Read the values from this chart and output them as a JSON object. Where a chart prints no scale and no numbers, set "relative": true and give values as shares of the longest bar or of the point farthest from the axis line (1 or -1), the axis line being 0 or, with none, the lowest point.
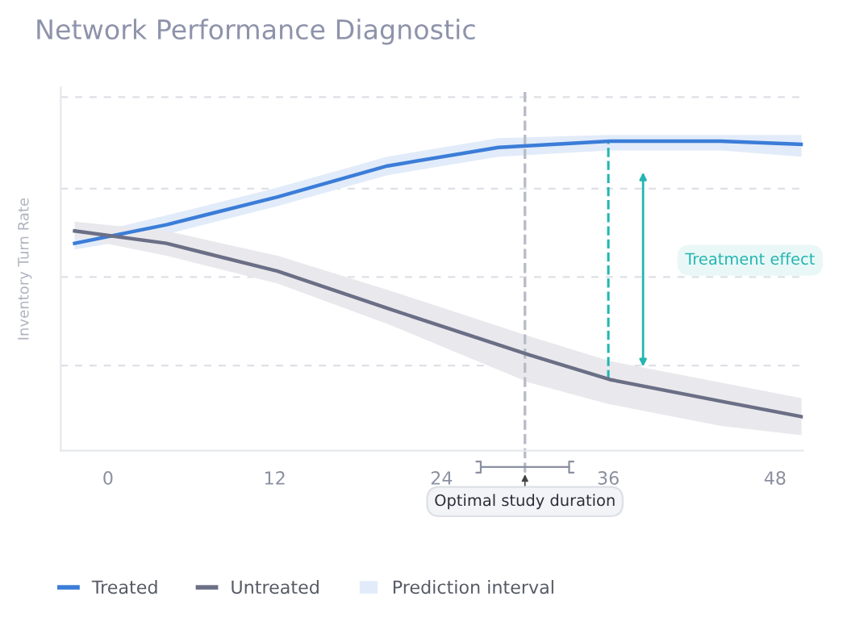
{
  "chart_data": {
    "type": "line",
    "title": "Network Performance Diagnostic",
    "ylabel": "Inventory Turn Rate",
    "relative": true,
    "xlim": [
      -3.4,
      50
    ],
    "xticks": [
      0,
      12,
      24,
      36,
      48
    ],
    "grid": "y",
    "legend": "bottom",
    "marker": "none",
    "line_style": "solid",
    "series": [
      {
        "name": "Treated",
        "color": "#3b7dd8",
        "x": [
          -2.4,
          4.2,
          12.2,
          20.1,
          28.1,
          36.1,
          44.1,
          49.9
        ],
        "values": [
          0.67,
          0.73,
          0.82,
          0.92,
          0.98,
          1.0,
          1.0,
          0.99
        ],
        "lower": [
          0.65,
          0.7,
          0.79,
          0.89,
          0.95,
          0.97,
          0.97,
          0.95
        ],
        "upper": [
          0.69,
          0.76,
          0.85,
          0.95,
          1.01,
          1.02,
          1.02,
          1.02
        ]
      },
      {
        "name": "Untreated",
        "color": "#6b6f86",
        "x": [
          -2.4,
          4.2,
          12.2,
          20.1,
          30.3,
          36.1,
          44.1,
          49.9
        ],
        "values": [
          0.71,
          0.67,
          0.58,
          0.46,
          0.31,
          0.23,
          0.16,
          0.11
        ],
        "lower": [
          0.69,
          0.63,
          0.54,
          0.41,
          0.22,
          0.15,
          0.08,
          0.05
        ],
        "upper": [
          0.74,
          0.71,
          0.63,
          0.52,
          0.37,
          0.29,
          0.22,
          0.17
        ]
      }
    ],
    "ref_lines": [
      {
        "axis": "x",
        "value": 30,
        "label": "Optimal study duration",
        "color": "#b8bcc6",
        "line_style": "dashed"
      },
      {
        "axis": "x",
        "value": 36,
        "label": "Treatment effect",
        "color": "#23b5b0",
        "line_style": "dashed"
      }
    ],
    "annotations": [
      "Prediction interval"
    ]
  }
}
